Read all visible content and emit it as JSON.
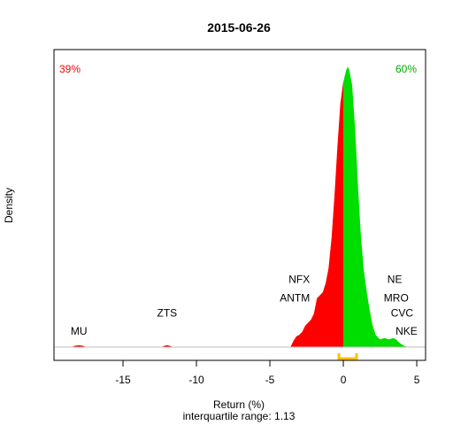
{
  "chart_data": {
    "type": "area",
    "title": "2015-06-26",
    "xlabel": "Return (%)",
    "ylabel": "Density",
    "subtitle": "interquartile range: 1.13",
    "xlim": [
      -19.7,
      5.6
    ],
    "ylim": [
      0,
      0.93
    ],
    "x_ticks": [
      -15,
      -10,
      -5,
      0,
      5
    ],
    "split_at": 0,
    "pct_negative": "39%",
    "pct_positive": "60%",
    "colors": {
      "negative": "#ff0000",
      "positive": "#00dd00",
      "iqr": "#ffbf00",
      "baseline": "#bebebe"
    },
    "iqr": {
      "from": -0.3,
      "to": 0.9
    },
    "density": [
      [
        -18.5,
        0.0
      ],
      [
        -18.3,
        0.004
      ],
      [
        -18.0,
        0.006
      ],
      [
        -17.7,
        0.004
      ],
      [
        -17.5,
        0.0
      ],
      [
        -12.4,
        0.0
      ],
      [
        -12.2,
        0.004
      ],
      [
        -12.0,
        0.006
      ],
      [
        -11.8,
        0.004
      ],
      [
        -11.6,
        0.0
      ],
      [
        -3.6,
        0.0
      ],
      [
        -3.4,
        0.02
      ],
      [
        -3.2,
        0.035
      ],
      [
        -3.0,
        0.04
      ],
      [
        -2.8,
        0.05
      ],
      [
        -2.6,
        0.07
      ],
      [
        -2.4,
        0.08
      ],
      [
        -2.2,
        0.09
      ],
      [
        -2.0,
        0.11
      ],
      [
        -1.8,
        0.16
      ],
      [
        -1.6,
        0.17
      ],
      [
        -1.4,
        0.18
      ],
      [
        -1.2,
        0.21
      ],
      [
        -1.0,
        0.26
      ],
      [
        -0.8,
        0.36
      ],
      [
        -0.6,
        0.5
      ],
      [
        -0.4,
        0.66
      ],
      [
        -0.2,
        0.8
      ],
      [
        0.0,
        0.87
      ],
      [
        0.2,
        0.91
      ],
      [
        0.3,
        0.92
      ],
      [
        0.4,
        0.91
      ],
      [
        0.6,
        0.86
      ],
      [
        0.8,
        0.72
      ],
      [
        1.0,
        0.53
      ],
      [
        1.2,
        0.36
      ],
      [
        1.4,
        0.25
      ],
      [
        1.6,
        0.18
      ],
      [
        1.8,
        0.12
      ],
      [
        2.0,
        0.07
      ],
      [
        2.2,
        0.04
      ],
      [
        2.5,
        0.025
      ],
      [
        2.8,
        0.03
      ],
      [
        3.1,
        0.025
      ],
      [
        3.4,
        0.03
      ],
      [
        3.6,
        0.025
      ],
      [
        3.8,
        0.015
      ],
      [
        4.0,
        0.008
      ],
      [
        4.2,
        0.003
      ],
      [
        4.4,
        0.0
      ]
    ],
    "annotations": [
      {
        "text": "MU",
        "x": -18.0,
        "level": 0.04
      },
      {
        "text": "ZTS",
        "x": -12.0,
        "level": 0.1
      },
      {
        "text": "NFX",
        "x": -3.0,
        "level": 0.21
      },
      {
        "text": "ANTM",
        "x": -3.3,
        "level": 0.15
      },
      {
        "text": "NE",
        "x": 3.5,
        "level": 0.21
      },
      {
        "text": "MRO",
        "x": 3.6,
        "level": 0.15
      },
      {
        "text": "CVC",
        "x": 4.0,
        "level": 0.1
      },
      {
        "text": "NKE",
        "x": 4.3,
        "level": 0.04
      }
    ]
  }
}
